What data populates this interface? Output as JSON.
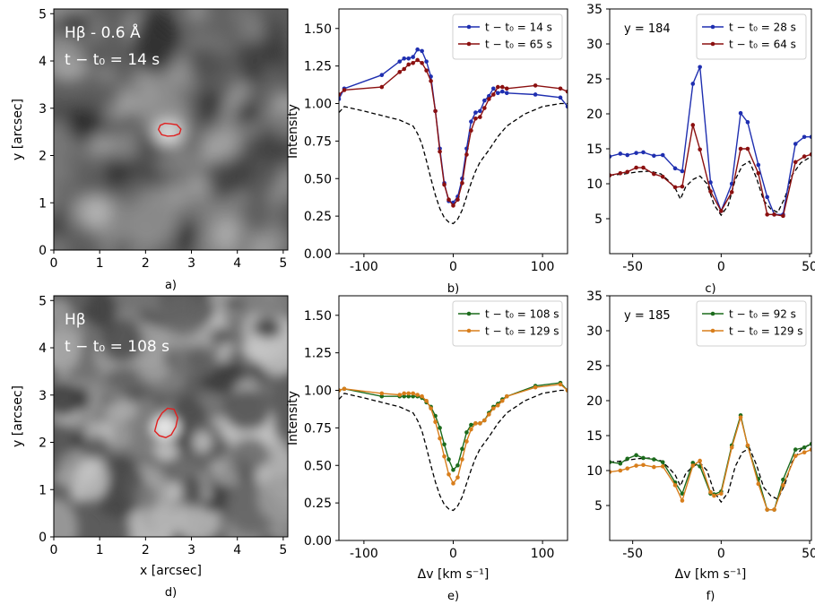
{
  "chart_data": [
    {
      "id": "a",
      "type": "heatmap",
      "panel_label": "a)",
      "overlay_line1": "Hβ - 0.6 Å",
      "overlay_line2": "t − t₀ = 14 s",
      "xlim": [
        0,
        5.1
      ],
      "ylim": [
        0,
        5.1
      ],
      "xticks": [
        0,
        1,
        2,
        3,
        4,
        5
      ],
      "yticks": [
        0,
        1,
        2,
        3,
        4,
        5
      ],
      "xlabel": "",
      "ylabel": "y [arcsec]",
      "contour_color": "#e02020",
      "contour": [
        [
          2.28,
          2.55
        ],
        [
          2.32,
          2.64
        ],
        [
          2.42,
          2.68
        ],
        [
          2.55,
          2.67
        ],
        [
          2.68,
          2.65
        ],
        [
          2.77,
          2.56
        ],
        [
          2.74,
          2.46
        ],
        [
          2.62,
          2.42
        ],
        [
          2.48,
          2.41
        ],
        [
          2.35,
          2.44
        ],
        [
          2.28,
          2.55
        ]
      ]
    },
    {
      "id": "b",
      "type": "line",
      "panel_label": "b)",
      "xlabel": "",
      "ylabel": "Intensity",
      "xlim": [
        -128,
        128
      ],
      "ylim": [
        0,
        1.63
      ],
      "xticks": [
        -100,
        0,
        100
      ],
      "yticks": [
        0,
        0.25,
        0.5,
        0.75,
        1.0,
        1.25,
        1.5
      ],
      "ytick_labels": [
        "0.00",
        "0.25",
        "0.50",
        "0.75",
        "1.00",
        "1.25",
        "1.50"
      ],
      "legend_position": "top-right",
      "series": [
        {
          "name": "t − t₀ = 14 s",
          "color": "#1f2fb0",
          "marker": true,
          "x": [
            -128,
            -122,
            -80,
            -60,
            -55,
            -50,
            -45,
            -40,
            -35,
            -30,
            -25,
            -20,
            -15,
            -10,
            -5,
            0,
            5,
            10,
            15,
            20,
            25,
            30,
            35,
            40,
            45,
            50,
            55,
            60,
            92,
            120,
            128
          ],
          "y": [
            1.03,
            1.1,
            1.19,
            1.28,
            1.3,
            1.3,
            1.31,
            1.36,
            1.35,
            1.28,
            1.18,
            0.95,
            0.7,
            0.47,
            0.35,
            0.34,
            0.38,
            0.5,
            0.7,
            0.88,
            0.94,
            0.95,
            1.02,
            1.05,
            1.1,
            1.07,
            1.08,
            1.07,
            1.06,
            1.04,
            0.98
          ]
        },
        {
          "name": "t − t₀ = 65 s",
          "color": "#8b1010",
          "marker": true,
          "x": [
            -128,
            -122,
            -80,
            -60,
            -55,
            -50,
            -45,
            -40,
            -35,
            -30,
            -25,
            -20,
            -15,
            -10,
            -5,
            0,
            5,
            10,
            15,
            20,
            25,
            30,
            35,
            40,
            45,
            50,
            55,
            60,
            92,
            120,
            128
          ],
          "y": [
            1.06,
            1.09,
            1.11,
            1.21,
            1.23,
            1.26,
            1.27,
            1.29,
            1.27,
            1.22,
            1.15,
            0.95,
            0.68,
            0.46,
            0.36,
            0.32,
            0.36,
            0.47,
            0.66,
            0.82,
            0.9,
            0.91,
            0.97,
            1.03,
            1.06,
            1.11,
            1.11,
            1.1,
            1.12,
            1.1,
            1.08
          ]
        },
        {
          "name": "",
          "color": "#000000",
          "dashed": true,
          "x": [
            -128,
            -122,
            -100,
            -80,
            -60,
            -45,
            -40,
            -35,
            -30,
            -25,
            -20,
            -15,
            -10,
            -5,
            0,
            5,
            10,
            15,
            20,
            25,
            30,
            40,
            50,
            60,
            80,
            100,
            120,
            128
          ],
          "y": [
            0.94,
            0.98,
            0.95,
            0.92,
            0.89,
            0.85,
            0.8,
            0.73,
            0.62,
            0.5,
            0.39,
            0.3,
            0.24,
            0.21,
            0.2,
            0.23,
            0.29,
            0.38,
            0.47,
            0.55,
            0.61,
            0.69,
            0.78,
            0.85,
            0.93,
            0.98,
            1.0,
            1.0
          ]
        }
      ]
    },
    {
      "id": "c",
      "type": "line",
      "panel_label": "c)",
      "annotation": "y = 184",
      "xlabel": "",
      "ylabel": "",
      "xlim": [
        -63,
        51
      ],
      "ylim": [
        0,
        35
      ],
      "xticks": [
        -50,
        0,
        50
      ],
      "yticks": [
        5,
        10,
        15,
        20,
        25,
        30,
        35
      ],
      "legend_position": "top-right",
      "series": [
        {
          "name": "t − t₀ = 28 s",
          "color": "#1f2fb0",
          "marker": true,
          "x": [
            -63,
            -57,
            -53,
            -48,
            -44,
            -38,
            -33,
            -26,
            -22,
            -16,
            -12,
            -6,
            0,
            6,
            11,
            15,
            21,
            26,
            30,
            35,
            42,
            47,
            51
          ],
          "y": [
            13.9,
            14.3,
            14.1,
            14.4,
            14.5,
            14.0,
            14.1,
            12.2,
            11.8,
            24.3,
            26.7,
            10.2,
            6.1,
            10.0,
            20.1,
            18.8,
            12.7,
            8.1,
            5.6,
            5.6,
            15.7,
            16.7,
            16.7
          ]
        },
        {
          "name": "t − t₀ = 64 s",
          "color": "#8b1010",
          "marker": true,
          "x": [
            -63,
            -57,
            -53,
            -48,
            -44,
            -38,
            -33,
            -26,
            -22,
            -16,
            -12,
            -6,
            0,
            6,
            11,
            15,
            21,
            26,
            30,
            35,
            42,
            47,
            51
          ],
          "y": [
            11.2,
            11.5,
            11.7,
            12.3,
            12.3,
            11.4,
            11.0,
            9.5,
            9.6,
            18.4,
            14.9,
            8.9,
            6.1,
            8.8,
            15.0,
            15.0,
            11.5,
            5.6,
            5.6,
            5.4,
            13.1,
            13.9,
            14.2
          ]
        },
        {
          "name": "",
          "color": "#000000",
          "dashed": true,
          "x": [
            -63,
            -55,
            -47,
            -40,
            -34,
            -30,
            -26,
            -23,
            -20,
            -16,
            -12,
            -8,
            -4,
            0,
            4,
            8,
            12,
            16,
            20,
            24,
            28,
            32,
            36,
            40,
            45,
            51
          ],
          "y": [
            11.2,
            11.4,
            11.7,
            11.8,
            11.4,
            10.5,
            9.4,
            7.8,
            9.6,
            10.6,
            11.1,
            10.0,
            7.0,
            5.5,
            6.9,
            10.6,
            12.6,
            13.2,
            10.8,
            7.6,
            6.4,
            5.9,
            8.0,
            11.2,
            13.0,
            13.9
          ]
        }
      ]
    },
    {
      "id": "d",
      "type": "heatmap",
      "panel_label": "d)",
      "overlay_line1": "Hβ",
      "overlay_line2": "t − t₀ = 108 s",
      "xlim": [
        0,
        5.1
      ],
      "ylim": [
        0,
        5.1
      ],
      "xticks": [
        0,
        1,
        2,
        3,
        4,
        5
      ],
      "yticks": [
        0,
        1,
        2,
        3,
        4,
        5
      ],
      "xlabel": "x [arcsec]",
      "ylabel": "y [arcsec]",
      "contour_color": "#e02020",
      "contour": [
        [
          2.2,
          2.24
        ],
        [
          2.26,
          2.46
        ],
        [
          2.36,
          2.62
        ],
        [
          2.48,
          2.72
        ],
        [
          2.62,
          2.7
        ],
        [
          2.7,
          2.52
        ],
        [
          2.66,
          2.33
        ],
        [
          2.56,
          2.16
        ],
        [
          2.44,
          2.1
        ],
        [
          2.3,
          2.14
        ],
        [
          2.2,
          2.24
        ]
      ]
    },
    {
      "id": "e",
      "type": "line",
      "panel_label": "e)",
      "xlabel": "Δv [km s⁻¹]",
      "ylabel": "Intensity",
      "xlim": [
        -128,
        128
      ],
      "ylim": [
        0,
        1.63
      ],
      "xticks": [
        -100,
        0,
        100
      ],
      "yticks": [
        0,
        0.25,
        0.5,
        0.75,
        1.0,
        1.25,
        1.5
      ],
      "ytick_labels": [
        "0.00",
        "0.25",
        "0.50",
        "0.75",
        "1.00",
        "1.25",
        "1.50"
      ],
      "legend_position": "top-right",
      "series": [
        {
          "name": "t − t₀ = 108 s",
          "color": "#1c6b1c",
          "marker": true,
          "x": [
            -128,
            -122,
            -80,
            -60,
            -55,
            -50,
            -45,
            -40,
            -35,
            -30,
            -25,
            -20,
            -15,
            -10,
            -5,
            0,
            5,
            10,
            15,
            20,
            25,
            30,
            35,
            40,
            45,
            50,
            55,
            60,
            92,
            120,
            128
          ],
          "y": [
            1.0,
            1.01,
            0.96,
            0.96,
            0.96,
            0.96,
            0.96,
            0.96,
            0.95,
            0.92,
            0.89,
            0.83,
            0.75,
            0.64,
            0.54,
            0.47,
            0.5,
            0.61,
            0.72,
            0.77,
            0.78,
            0.78,
            0.8,
            0.85,
            0.89,
            0.91,
            0.94,
            0.96,
            1.03,
            1.05,
            1.0
          ]
        },
        {
          "name": "t − t₀ = 129 s",
          "color": "#d87e1c",
          "marker": true,
          "x": [
            -128,
            -122,
            -80,
            -60,
            -55,
            -50,
            -45,
            -40,
            -35,
            -30,
            -25,
            -20,
            -15,
            -10,
            -5,
            0,
            5,
            10,
            15,
            20,
            25,
            30,
            35,
            40,
            45,
            50,
            55,
            60,
            92,
            120,
            128
          ],
          "y": [
            1.0,
            1.01,
            0.98,
            0.97,
            0.98,
            0.98,
            0.98,
            0.97,
            0.96,
            0.93,
            0.88,
            0.79,
            0.68,
            0.56,
            0.44,
            0.38,
            0.42,
            0.54,
            0.66,
            0.74,
            0.78,
            0.78,
            0.8,
            0.84,
            0.88,
            0.9,
            0.93,
            0.96,
            1.02,
            1.04,
            1.0
          ]
        },
        {
          "name": "",
          "color": "#000000",
          "dashed": true,
          "x": [
            -128,
            -122,
            -100,
            -80,
            -60,
            -45,
            -40,
            -35,
            -30,
            -25,
            -20,
            -15,
            -10,
            -5,
            0,
            5,
            10,
            15,
            20,
            25,
            30,
            40,
            50,
            60,
            80,
            100,
            120,
            128
          ],
          "y": [
            0.94,
            0.98,
            0.95,
            0.92,
            0.89,
            0.85,
            0.8,
            0.73,
            0.62,
            0.5,
            0.39,
            0.3,
            0.24,
            0.21,
            0.2,
            0.23,
            0.29,
            0.38,
            0.47,
            0.55,
            0.61,
            0.69,
            0.78,
            0.85,
            0.93,
            0.98,
            1.0,
            1.0
          ]
        }
      ]
    },
    {
      "id": "f",
      "type": "line",
      "panel_label": "f)",
      "annotation": "y = 185",
      "xlabel": "Δv [km s⁻¹]",
      "ylabel": "",
      "xlim": [
        -63,
        51
      ],
      "ylim": [
        0,
        35
      ],
      "xticks": [
        -50,
        0,
        50
      ],
      "yticks": [
        5,
        10,
        15,
        20,
        25,
        30,
        35
      ],
      "legend_position": "top-right",
      "series": [
        {
          "name": "t − t₀ = 92 s",
          "color": "#1c6b1c",
          "marker": true,
          "x": [
            -63,
            -57,
            -53,
            -48,
            -44,
            -38,
            -33,
            -26,
            -22,
            -16,
            -12,
            -6,
            -4,
            0,
            6,
            11,
            15,
            21,
            26,
            30,
            35,
            42,
            47,
            51
          ],
          "y": [
            11.2,
            11.0,
            11.7,
            12.2,
            11.8,
            11.6,
            11.2,
            8.3,
            6.7,
            11.1,
            10.6,
            6.7,
            6.6,
            7.0,
            13.6,
            17.9,
            13.5,
            8.8,
            4.4,
            4.4,
            8.7,
            13.0,
            13.3,
            13.8
          ]
        },
        {
          "name": "t − t₀ = 129 s",
          "color": "#d87e1c",
          "marker": true,
          "x": [
            -63,
            -57,
            -53,
            -48,
            -44,
            -38,
            -33,
            -26,
            -22,
            -16,
            -12,
            -6,
            -4,
            0,
            6,
            11,
            15,
            21,
            26,
            30,
            35,
            42,
            47,
            51
          ],
          "y": [
            9.8,
            10.0,
            10.3,
            10.7,
            10.8,
            10.5,
            10.6,
            7.9,
            5.7,
            10.7,
            11.4,
            6.9,
            6.4,
            6.7,
            13.3,
            17.6,
            13.6,
            8.1,
            4.4,
            4.4,
            7.9,
            12.1,
            12.6,
            13.0
          ]
        },
        {
          "name": "",
          "color": "#000000",
          "dashed": true,
          "x": [
            -63,
            -55,
            -47,
            -40,
            -34,
            -30,
            -26,
            -23,
            -20,
            -16,
            -12,
            -8,
            -4,
            0,
            4,
            8,
            12,
            16,
            20,
            24,
            28,
            32,
            36,
            40,
            45,
            51
          ],
          "y": [
            11.2,
            11.4,
            11.7,
            11.8,
            11.4,
            10.5,
            9.4,
            7.8,
            9.6,
            10.6,
            11.1,
            10.0,
            7.0,
            5.5,
            6.9,
            10.6,
            12.6,
            13.2,
            10.8,
            7.6,
            6.4,
            5.9,
            8.0,
            11.2,
            13.0,
            13.9
          ]
        }
      ]
    }
  ]
}
